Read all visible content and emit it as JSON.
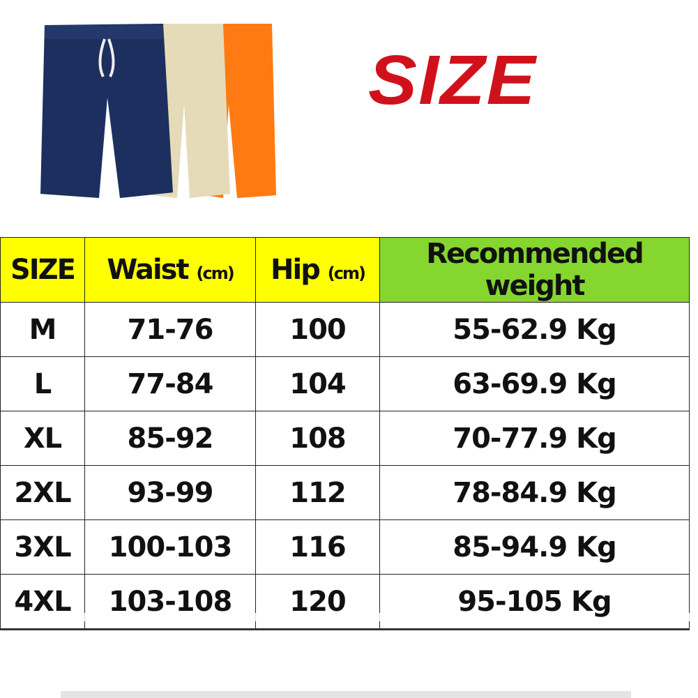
{
  "title": "SIZE",
  "colors": {
    "title": "#d0111b",
    "header_yellow": "#ffff00",
    "header_green": "#85d62f",
    "shorts": [
      "#1c2f5e",
      "#e6dbb8",
      "#ff7a12"
    ]
  },
  "table": {
    "headers": [
      {
        "label": "SIZE",
        "unit": ""
      },
      {
        "label": "Waist",
        "unit": "(cm)"
      },
      {
        "label": "Hip",
        "unit": "(cm)"
      },
      {
        "label": "Recommended weight",
        "unit": ""
      }
    ],
    "rows": [
      [
        "M",
        "71-76",
        "100",
        "55-62.9 Kg"
      ],
      [
        "L",
        "77-84",
        "104",
        "63-69.9 Kg"
      ],
      [
        "XL",
        "85-92",
        "108",
        "70-77.9 Kg"
      ],
      [
        "2XL",
        "93-99",
        "112",
        "78-84.9 Kg"
      ],
      [
        "3XL",
        "100-103",
        "116",
        "85-94.9 Kg"
      ],
      [
        "4XL",
        "103-108",
        "120",
        "95-105 Kg"
      ]
    ]
  }
}
